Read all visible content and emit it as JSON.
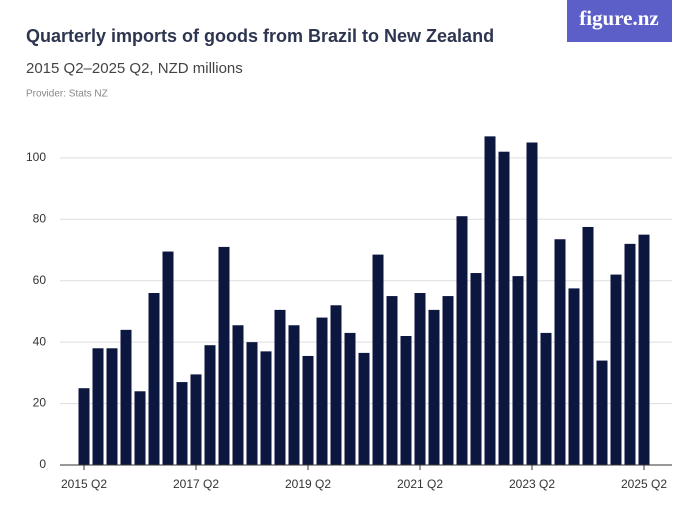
{
  "chart_data": {
    "type": "bar",
    "title": "Quarterly imports of goods from Brazil to New Zealand",
    "subtitle": "2015 Q2–2025 Q2, NZD millions",
    "provider": "Provider: Stats NZ",
    "logo": "figure.nz",
    "categories": [
      "2015 Q2",
      null,
      null,
      null,
      null,
      null,
      null,
      null,
      "2017 Q2",
      null,
      null,
      null,
      null,
      null,
      null,
      null,
      "2019 Q2",
      null,
      null,
      null,
      null,
      null,
      null,
      null,
      "2021 Q2",
      null,
      null,
      null,
      null,
      null,
      null,
      null,
      "2023 Q2",
      null,
      null,
      null,
      null,
      null,
      null,
      null,
      "2025 Q2"
    ],
    "values": [
      25,
      38,
      38,
      44,
      24,
      56,
      69.5,
      27,
      29.5,
      39,
      71,
      45.5,
      40,
      37,
      50.5,
      45.5,
      35.5,
      48,
      52,
      43,
      36.5,
      68.5,
      55,
      42,
      56,
      50.5,
      55,
      81,
      62.5,
      107,
      102,
      61.5,
      105,
      43,
      73.5,
      57.5,
      77.5,
      34,
      62,
      72,
      75
    ],
    "color": "#0c1740",
    "ylim": [
      0,
      112
    ],
    "yticks": [
      0,
      20,
      40,
      60,
      80,
      100
    ],
    "grid": true
  }
}
